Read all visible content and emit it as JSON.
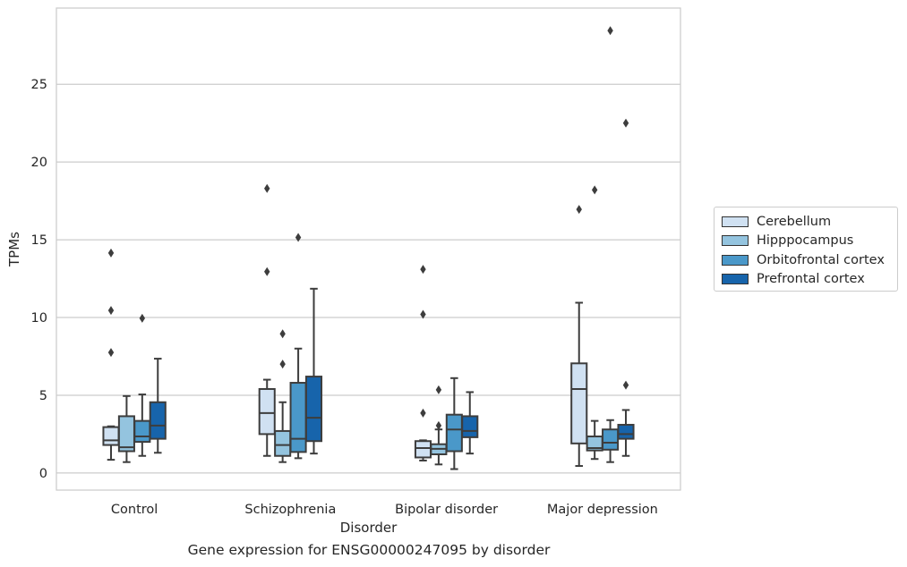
{
  "chart_data": {
    "type": "box",
    "title": "Gene expression for ENSG00000247095 by disorder",
    "xlabel": "Disorder",
    "ylabel": "TPMs",
    "ylim": [
      -1.1,
      29.9
    ],
    "yticks": [
      0,
      5,
      10,
      15,
      20,
      25
    ],
    "grid": "horizontal",
    "legend_position": "right",
    "categories": [
      "Control",
      "Schizophrenia",
      "Bipolar disorder",
      "Major depression"
    ],
    "series": [
      {
        "name": "Cerebellum",
        "color": "#d0e1f2",
        "boxes": [
          {
            "whislo": 0.85,
            "q1": 1.8,
            "med": 2.1,
            "q3": 2.95,
            "whishi": 3.0,
            "fliers": [
              7.75,
              10.45,
              14.15
            ]
          },
          {
            "whislo": 1.1,
            "q1": 2.5,
            "med": 3.85,
            "q3": 5.4,
            "whislo_cap": 1.1,
            "whishi": 6.0,
            "fliers": [
              12.95,
              18.3
            ]
          },
          {
            "whislo": 0.8,
            "q1": 1.0,
            "med": 1.6,
            "q3": 2.05,
            "whishi": 2.1,
            "fliers": [
              3.85,
              10.2,
              13.1
            ]
          },
          {
            "whislo": 0.45,
            "q1": 1.9,
            "med": 5.4,
            "q3": 7.05,
            "whishi": 10.95,
            "fliers": [
              16.95
            ]
          }
        ]
      },
      {
        "name": "Hipppocampus",
        "color": "#94c4df",
        "boxes": [
          {
            "whislo": 0.7,
            "q1": 1.4,
            "med": 1.65,
            "q3": 3.65,
            "whishi": 4.95,
            "fliers": []
          },
          {
            "whislo": 0.7,
            "q1": 1.1,
            "med": 1.8,
            "q3": 2.7,
            "whishi": 4.55,
            "fliers": [
              7.0,
              8.95
            ]
          },
          {
            "whislo": 0.55,
            "q1": 1.2,
            "med": 1.55,
            "q3": 1.85,
            "whishi": 2.8,
            "fliers": [
              3.05,
              5.35
            ]
          },
          {
            "whislo": 0.9,
            "q1": 1.45,
            "med": 1.6,
            "q3": 2.35,
            "whishi": 3.35,
            "fliers": [
              18.2
            ]
          }
        ]
      },
      {
        "name": "Orbitofrontal cortex",
        "color": "#4a98c9",
        "boxes": [
          {
            "whislo": 1.1,
            "q1": 2.0,
            "med": 2.35,
            "q3": 3.35,
            "whishi": 5.05,
            "fliers": [
              9.95
            ]
          },
          {
            "whislo": 0.95,
            "q1": 1.35,
            "med": 2.2,
            "q3": 5.8,
            "whishi": 8.0,
            "fliers": [
              15.15
            ]
          },
          {
            "whislo": 0.25,
            "q1": 1.4,
            "med": 2.8,
            "q3": 3.75,
            "whishi": 6.1,
            "fliers": []
          },
          {
            "whislo": 0.7,
            "q1": 1.5,
            "med": 1.95,
            "q3": 2.8,
            "whishi": 3.4,
            "fliers": [
              28.45
            ]
          }
        ]
      },
      {
        "name": "Prefrontal cortex",
        "color": "#1764ab",
        "boxes": [
          {
            "whislo": 1.3,
            "q1": 2.2,
            "med": 3.05,
            "q3": 4.55,
            "whishi": 7.35,
            "fliers": []
          },
          {
            "whislo": 1.25,
            "q1": 2.05,
            "med": 3.55,
            "q3": 6.2,
            "whishi": 11.85,
            "fliers": []
          },
          {
            "whislo": 1.25,
            "q1": 2.3,
            "med": 2.7,
            "q3": 3.65,
            "whishi": 5.2,
            "fliers": []
          },
          {
            "whislo": 1.1,
            "q1": 2.2,
            "med": 2.5,
            "q3": 3.1,
            "whishi": 4.05,
            "fliers": [
              5.65,
              22.5
            ]
          }
        ]
      }
    ]
  }
}
